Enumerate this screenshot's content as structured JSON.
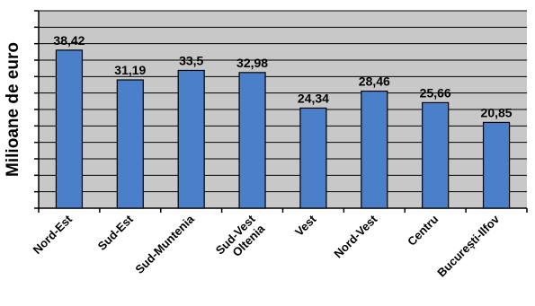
{
  "chart_data": {
    "type": "bar",
    "title": "",
    "xlabel": "",
    "ylabel": "Milioane de euro",
    "ylim": [
      0,
      48
    ],
    "grid": true,
    "legend": "none",
    "categories": [
      "Nord-Est",
      "Sud-Est",
      "Sud-Muntenia",
      "Sud-Vest Oltenia",
      "Vest",
      "Nord-Vest",
      "Centru",
      "București-Ilfov"
    ],
    "category_lines": [
      [
        "Nord-Est"
      ],
      [
        "Sud-Est"
      ],
      [
        "Sud-Muntenia"
      ],
      [
        "Sud-Vest",
        "Oltenia"
      ],
      [
        "Vest"
      ],
      [
        "Nord-Vest"
      ],
      [
        "Centru"
      ],
      [
        "București-Ilfov"
      ]
    ],
    "values": [
      38.42,
      31.19,
      33.5,
      32.98,
      24.34,
      28.46,
      25.66,
      20.85
    ],
    "value_labels": [
      "38,42",
      "31,19",
      "33,5",
      "32,98",
      "24,34",
      "28,46",
      "25,66",
      "20,85"
    ],
    "colors": {
      "bar": "#4a7fc9",
      "bar_stroke": "#000000",
      "plot_bg": "#c8c8c8",
      "grid": "#000000",
      "axis": "#000000",
      "text": "#000000"
    }
  }
}
